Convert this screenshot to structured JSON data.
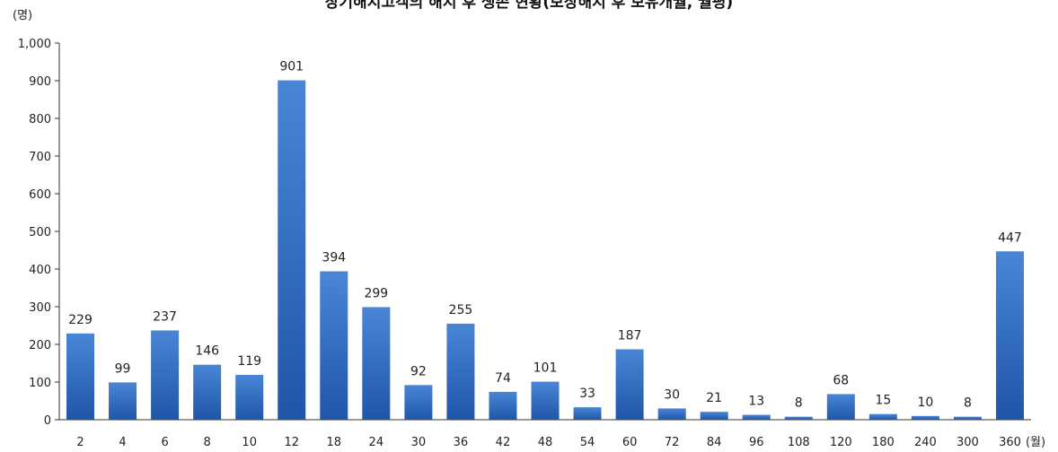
{
  "chart_data": {
    "type": "bar",
    "title": "장기해지고객의 해지 후 생존 현황(보장해지 후 보유개월, 월평)",
    "y_unit_label": "(명)",
    "x_unit_label": "(월)",
    "categories": [
      "2",
      "4",
      "6",
      "8",
      "10",
      "12",
      "18",
      "24",
      "30",
      "36",
      "42",
      "48",
      "54",
      "60",
      "72",
      "84",
      "96",
      "108",
      "120",
      "180",
      "240",
      "300",
      "360"
    ],
    "values": [
      229,
      99,
      237,
      146,
      119,
      901,
      394,
      299,
      92,
      255,
      74,
      101,
      33,
      187,
      30,
      21,
      13,
      8,
      68,
      15,
      10,
      8,
      447
    ],
    "data_labels": [
      "229",
      "99",
      "237",
      "146",
      "119",
      "901",
      "394",
      "299",
      "92",
      "255",
      "74",
      "101",
      "33",
      "187",
      "30",
      "21",
      "13",
      "8",
      "68",
      "15",
      "10",
      "8",
      "447"
    ],
    "ylim": [
      0,
      1000
    ],
    "y_ticks": [
      0,
      100,
      200,
      300,
      400,
      500,
      600,
      700,
      800,
      900,
      1000
    ],
    "y_tick_labels": [
      "0",
      "100",
      "200",
      "300",
      "400",
      "500",
      "600",
      "700",
      "800",
      "900",
      "1,000"
    ],
    "grid": false,
    "legend": "none",
    "colors": {
      "bar_top": "#4a86d6",
      "bar_bottom": "#1f56a8",
      "axis": "#333333",
      "text": "#222222"
    }
  }
}
